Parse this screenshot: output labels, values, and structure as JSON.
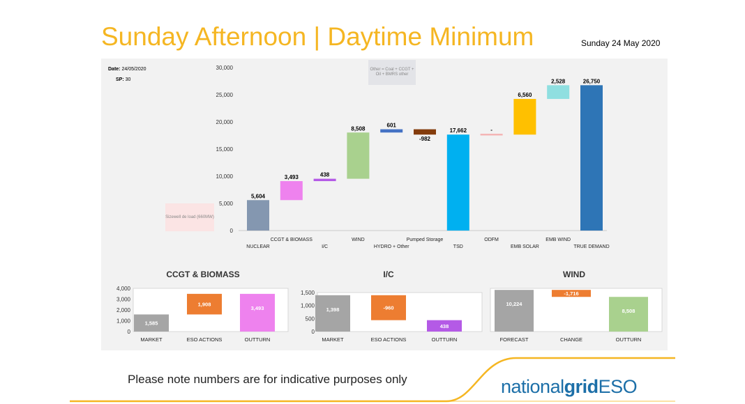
{
  "header": {
    "title": "Sunday Afternoon | Daytime Minimum",
    "date": "Sunday 24 May 2020"
  },
  "meta": {
    "date_label": "Date:",
    "date_value": "24/05/2020",
    "sp_label": "SP:",
    "sp_value": "30"
  },
  "annotations": {
    "sizewell": "Sizewell de load (660MW)",
    "tsd_note": "Other = Coal + CCGT + Oil + BMRS other"
  },
  "chart_data": [
    {
      "type": "waterfall",
      "ylim": [
        0,
        30000
      ],
      "yticks": [
        0,
        5000,
        10000,
        15000,
        20000,
        25000,
        30000
      ],
      "ytick_labels": [
        "0",
        "5,000",
        "10,000",
        "15,000",
        "20,000",
        "25,000",
        "30,000"
      ],
      "categories": [
        "NUCLEAR",
        "CCGT & BIOMASS",
        "I/C",
        "WIND",
        "HYDRO + Other",
        "Pumped Storage",
        "TSD",
        "ODFM",
        "EMB SOLAR",
        "EMB WIND",
        "TRUE DEMAND"
      ],
      "bars": [
        {
          "category": "NUCLEAR",
          "start": 0,
          "end": 5604,
          "label": "5,604",
          "color": "#8497b0"
        },
        {
          "category": "CCGT & BIOMASS",
          "start": 5604,
          "end": 9097,
          "label": "3,493",
          "color": "#ee82ee"
        },
        {
          "category": "I/C",
          "start": 9097,
          "end": 9535,
          "label": "438",
          "color": "#b45ae6"
        },
        {
          "category": "WIND",
          "start": 9535,
          "end": 18043,
          "label": "8,508",
          "color": "#a9d18e"
        },
        {
          "category": "HYDRO + Other",
          "start": 18043,
          "end": 18644,
          "label": "601",
          "color": "#4472c4"
        },
        {
          "category": "Pumped Storage",
          "start": 18644,
          "end": 17662,
          "label": "-982",
          "color": "#843c0c"
        },
        {
          "category": "TSD",
          "start": 0,
          "end": 17662,
          "label": "17,662",
          "color": "#00b0f0"
        },
        {
          "category": "ODFM",
          "start": 17662,
          "end": 17662,
          "label": "-",
          "color": "#f4b6b6"
        },
        {
          "category": "EMB SOLAR",
          "start": 17662,
          "end": 24222,
          "label": "6,560",
          "color": "#ffc000"
        },
        {
          "category": "EMB WIND",
          "start": 24222,
          "end": 26750,
          "label": "2,528",
          "color": "#8fdfe0"
        },
        {
          "category": "TRUE DEMAND",
          "start": 0,
          "end": 26750,
          "label": "26,750",
          "color": "#2e75b6"
        }
      ]
    },
    {
      "type": "bar",
      "title": "CCGT & BIOMASS",
      "ylim": [
        0,
        4000
      ],
      "yticks": [
        0,
        1000,
        2000,
        3000,
        4000
      ],
      "ytick_labels": [
        "0",
        "1,000",
        "2,000",
        "3,000",
        "4,000"
      ],
      "categories": [
        "MARKET",
        "ESO ACTIONS",
        "OUTTURN"
      ],
      "bars": [
        {
          "category": "MARKET",
          "start": 0,
          "end": 1585,
          "label": "1,585",
          "color": "#a5a5a5"
        },
        {
          "category": "ESO ACTIONS",
          "start": 1585,
          "end": 3493,
          "label": "1,908",
          "color": "#ed7d31"
        },
        {
          "category": "OUTTURN",
          "start": 0,
          "end": 3493,
          "label": "3,493",
          "color": "#ee82ee"
        }
      ]
    },
    {
      "type": "bar",
      "title": "I/C",
      "ylim": [
        0,
        1500
      ],
      "yticks": [
        0,
        500,
        1000,
        1500
      ],
      "ytick_labels": [
        "0",
        "500",
        "1,000",
        "1,500"
      ],
      "categories": [
        "MARKET",
        "ESO ACTIONS",
        "OUTTURN"
      ],
      "bars": [
        {
          "category": "MARKET",
          "start": 0,
          "end": 1398,
          "label": "1,398",
          "color": "#a5a5a5"
        },
        {
          "category": "ESO ACTIONS",
          "start": 1398,
          "end": 438,
          "label": "-960",
          "color": "#ed7d31"
        },
        {
          "category": "OUTTURN",
          "start": 0,
          "end": 438,
          "label": "438",
          "color": "#b45ae6"
        }
      ]
    },
    {
      "type": "bar",
      "title": "WIND",
      "ylim": [
        0,
        10600
      ],
      "yticks": [],
      "ytick_labels": [],
      "categories": [
        "FORECAST",
        "CHANGE",
        "OUTTURN"
      ],
      "bars": [
        {
          "category": "FORECAST",
          "start": 0,
          "end": 10224,
          "label": "10,224",
          "color": "#a5a5a5"
        },
        {
          "category": "CHANGE",
          "start": 10224,
          "end": 8508,
          "label": "-1,716",
          "color": "#ed7d31"
        },
        {
          "category": "OUTTURN",
          "start": 0,
          "end": 8508,
          "label": "8,508",
          "color": "#a9d18e"
        }
      ]
    }
  ],
  "footer": {
    "note": "Please note numbers are for indicative purposes only",
    "logo_a": "national",
    "logo_b": "grid",
    "logo_c": "ESO"
  }
}
